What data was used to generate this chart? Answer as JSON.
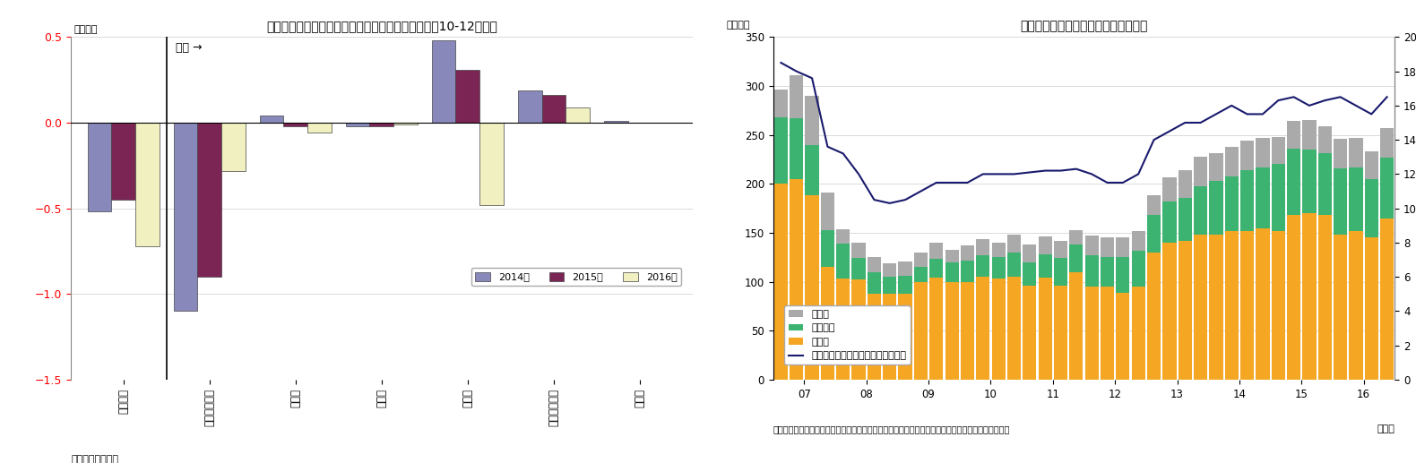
{
  "chart8": {
    "title": "（図表８）株式・出資金・投信除く証券のフロー（10-12月期）",
    "ylabel": "（兆円）",
    "source": "（資料）日本銀行",
    "annotation": "内訳 →",
    "categories": [
      "債務証券",
      "国債・財融債",
      "地方債",
      "金融債",
      "事業債",
      "信託受益権等",
      "その他"
    ],
    "series": {
      "2014年": [
        -0.52,
        -1.1,
        0.04,
        -0.02,
        0.48,
        0.19,
        0.01
      ],
      "2015年": [
        -0.45,
        -0.9,
        -0.02,
        -0.02,
        0.31,
        0.16,
        0.0
      ],
      "2016年": [
        -0.72,
        -0.28,
        -0.06,
        -0.01,
        -0.48,
        0.09,
        0.0
      ]
    },
    "colors": {
      "2014年": "#8888bb",
      "2015年": "#7b2555",
      "2016年": "#f0f0c0"
    },
    "ylim": [
      -1.5,
      0.5
    ],
    "yticks": [
      -1.5,
      -1.0,
      -0.5,
      0.0,
      0.5
    ]
  },
  "chart9": {
    "title": "（図表９）リスク性資産の残高と割合",
    "ylabel_left": "（兆円）",
    "source": "（資料）日本銀行　　（注）株式等、投資信託、外貨預金、対外証券投資、信託受益権を対象とした",
    "source_right": "（年）",
    "x_labels": [
      "07",
      "08",
      "09",
      "10",
      "11",
      "12",
      "13",
      "14",
      "15",
      "16"
    ],
    "kabushiki": [
      200,
      205,
      188,
      115,
      103,
      102,
      88,
      88,
      88,
      100,
      104,
      100,
      100,
      105,
      103,
      105,
      96,
      104,
      96,
      110,
      95,
      95,
      89,
      95,
      130,
      140,
      142,
      148,
      148,
      152,
      152,
      155,
      152,
      168,
      170,
      168,
      148,
      152,
      145,
      165
    ],
    "toushin": [
      68,
      62,
      52,
      38,
      36,
      22,
      22,
      17,
      18,
      15,
      19,
      20,
      22,
      22,
      22,
      25,
      24,
      24,
      28,
      28,
      32,
      30,
      36,
      37,
      38,
      42,
      44,
      50,
      55,
      56,
      62,
      62,
      68,
      68,
      65,
      63,
      68,
      65,
      60,
      62
    ],
    "sonota": [
      28,
      44,
      50,
      38,
      15,
      16,
      15,
      14,
      15,
      15,
      17,
      13,
      15,
      17,
      15,
      18,
      18,
      18,
      18,
      15,
      20,
      20,
      20,
      20,
      20,
      25,
      28,
      30,
      28,
      30,
      30,
      30,
      28,
      28,
      30,
      28,
      30,
      30,
      28,
      30
    ],
    "ratio": [
      18.5,
      18.0,
      17.6,
      13.6,
      13.2,
      12.0,
      10.5,
      10.3,
      10.5,
      11.0,
      11.5,
      11.5,
      11.5,
      12.0,
      12.0,
      12.0,
      12.1,
      12.2,
      12.2,
      12.3,
      12.0,
      11.5,
      11.5,
      12.0,
      14.0,
      14.5,
      15.0,
      15.0,
      15.5,
      16.0,
      15.5,
      15.5,
      16.3,
      16.5,
      16.0,
      16.3,
      16.5,
      16.0,
      15.5,
      16.5
    ],
    "n_per_year": 4,
    "n_years": 10,
    "ylim_left": [
      0,
      350
    ],
    "ylim_right": [
      0,
      20
    ],
    "yticks_left": [
      0,
      50,
      100,
      150,
      200,
      250,
      300,
      350
    ],
    "yticks_right": [
      0,
      2,
      4,
      6,
      8,
      10,
      12,
      14,
      16,
      18,
      20
    ],
    "colors": {
      "kabushiki": "#f5a623",
      "toushin": "#3cb371",
      "sonota": "#aaaaaa",
      "line": "#1a1a6e"
    },
    "legend_labels": [
      "その他",
      "投資信託",
      "株式等",
      "個人金融資産に占める割合（右軸）"
    ]
  }
}
